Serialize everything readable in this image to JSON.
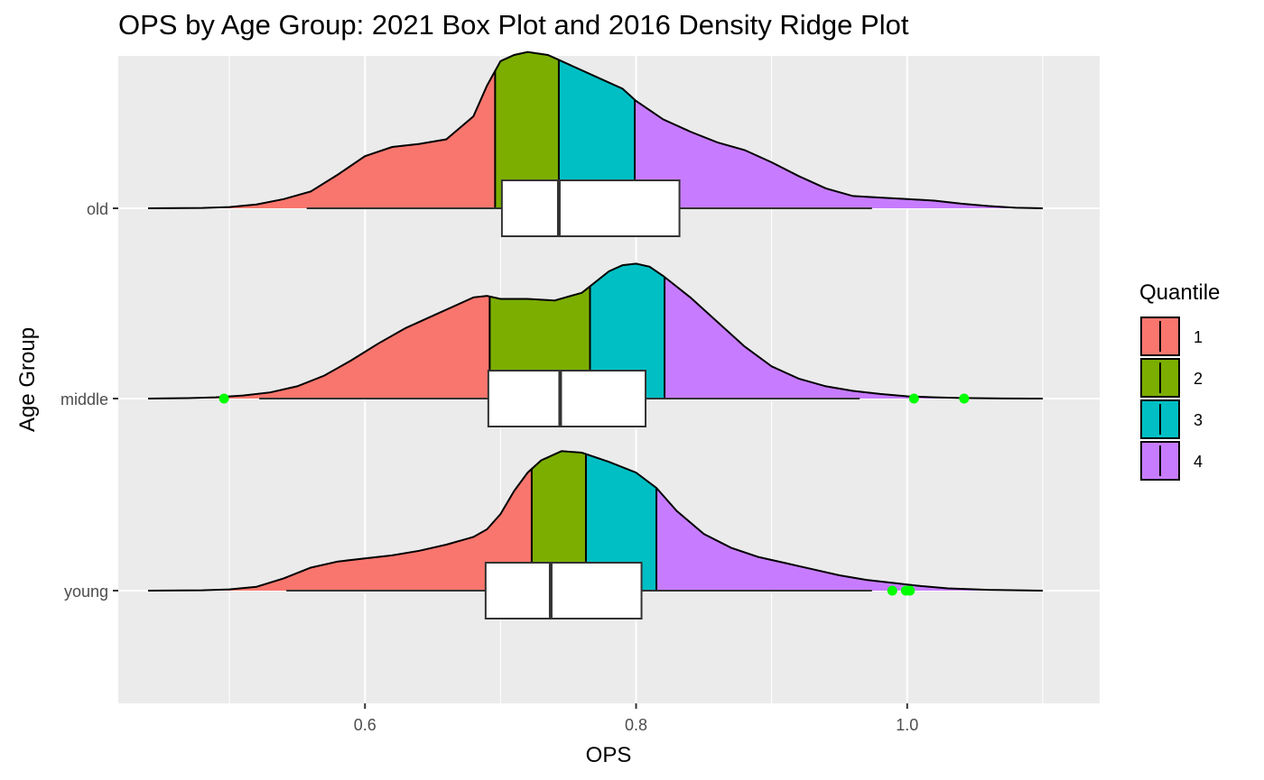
{
  "chart_data": {
    "type": "density-ridge with box plot",
    "title": "OPS by Age Group: 2021 Box Plot and 2016 Density Ridge Plot",
    "xlabel": "OPS",
    "ylabel": "Age Group",
    "xlim": [
      0.418,
      1.142
    ],
    "x_ticks": [
      "0.6",
      "0.8",
      "1.0"
    ],
    "x_tick_values": [
      0.6,
      0.8,
      1.0
    ],
    "categories": [
      "old",
      "middle",
      "young"
    ],
    "grid": true,
    "legend": {
      "title": "Quantile",
      "position": "right",
      "items": [
        {
          "label": "1",
          "color": "#F8766D"
        },
        {
          "label": "2",
          "color": "#7CAE00"
        },
        {
          "label": "3",
          "color": "#00BFC4"
        },
        {
          "label": "4",
          "color": "#C77CFF"
        }
      ]
    },
    "outlier_color": "#00FF00",
    "ridges": [
      {
        "group": "old",
        "range": [
          0.44,
          1.1
        ],
        "quantile_cuts": [
          0.696,
          0.743,
          0.799
        ],
        "density": [
          [
            0.44,
            0
          ],
          [
            0.48,
            0.002
          ],
          [
            0.5,
            0.008
          ],
          [
            0.52,
            0.025
          ],
          [
            0.54,
            0.06
          ],
          [
            0.56,
            0.11
          ],
          [
            0.58,
            0.22
          ],
          [
            0.6,
            0.34
          ],
          [
            0.62,
            0.4
          ],
          [
            0.64,
            0.42
          ],
          [
            0.66,
            0.45
          ],
          [
            0.68,
            0.6
          ],
          [
            0.69,
            0.8
          ],
          [
            0.7,
            0.96
          ],
          [
            0.71,
            1.0
          ],
          [
            0.72,
            1.02
          ],
          [
            0.735,
            1.0
          ],
          [
            0.75,
            0.94
          ],
          [
            0.77,
            0.86
          ],
          [
            0.79,
            0.78
          ],
          [
            0.8,
            0.7
          ],
          [
            0.82,
            0.58
          ],
          [
            0.84,
            0.5
          ],
          [
            0.86,
            0.43
          ],
          [
            0.88,
            0.38
          ],
          [
            0.9,
            0.3
          ],
          [
            0.92,
            0.21
          ],
          [
            0.94,
            0.13
          ],
          [
            0.96,
            0.08
          ],
          [
            0.98,
            0.07
          ],
          [
            1.0,
            0.06
          ],
          [
            1.02,
            0.05
          ],
          [
            1.04,
            0.03
          ],
          [
            1.06,
            0.015
          ],
          [
            1.08,
            0.004
          ],
          [
            1.1,
            0
          ]
        ]
      },
      {
        "group": "middle",
        "range": [
          0.44,
          1.1
        ],
        "quantile_cuts": [
          0.692,
          0.766,
          0.821
        ],
        "density": [
          [
            0.44,
            0
          ],
          [
            0.47,
            0.003
          ],
          [
            0.49,
            0.008
          ],
          [
            0.51,
            0.02
          ],
          [
            0.53,
            0.04
          ],
          [
            0.55,
            0.08
          ],
          [
            0.57,
            0.15
          ],
          [
            0.59,
            0.25
          ],
          [
            0.61,
            0.36
          ],
          [
            0.63,
            0.46
          ],
          [
            0.65,
            0.54
          ],
          [
            0.67,
            0.62
          ],
          [
            0.68,
            0.66
          ],
          [
            0.69,
            0.67
          ],
          [
            0.7,
            0.65
          ],
          [
            0.72,
            0.65
          ],
          [
            0.74,
            0.64
          ],
          [
            0.76,
            0.69
          ],
          [
            0.78,
            0.83
          ],
          [
            0.79,
            0.87
          ],
          [
            0.8,
            0.88
          ],
          [
            0.81,
            0.86
          ],
          [
            0.82,
            0.8
          ],
          [
            0.84,
            0.66
          ],
          [
            0.86,
            0.5
          ],
          [
            0.88,
            0.34
          ],
          [
            0.9,
            0.21
          ],
          [
            0.92,
            0.13
          ],
          [
            0.94,
            0.08
          ],
          [
            0.96,
            0.05
          ],
          [
            0.98,
            0.03
          ],
          [
            1.0,
            0.015
          ],
          [
            1.02,
            0.008
          ],
          [
            1.04,
            0.004
          ],
          [
            1.07,
            0.001
          ],
          [
            1.1,
            0
          ]
        ]
      },
      {
        "group": "young",
        "range": [
          0.44,
          1.1
        ],
        "quantile_cuts": [
          0.723,
          0.763,
          0.815
        ],
        "density": [
          [
            0.44,
            0
          ],
          [
            0.48,
            0.002
          ],
          [
            0.5,
            0.008
          ],
          [
            0.52,
            0.025
          ],
          [
            0.54,
            0.08
          ],
          [
            0.56,
            0.15
          ],
          [
            0.58,
            0.19
          ],
          [
            0.6,
            0.21
          ],
          [
            0.62,
            0.23
          ],
          [
            0.64,
            0.26
          ],
          [
            0.66,
            0.3
          ],
          [
            0.68,
            0.35
          ],
          [
            0.69,
            0.4
          ],
          [
            0.7,
            0.5
          ],
          [
            0.71,
            0.65
          ],
          [
            0.72,
            0.77
          ],
          [
            0.73,
            0.85
          ],
          [
            0.745,
            0.91
          ],
          [
            0.76,
            0.9
          ],
          [
            0.78,
            0.84
          ],
          [
            0.8,
            0.77
          ],
          [
            0.815,
            0.67
          ],
          [
            0.83,
            0.52
          ],
          [
            0.85,
            0.37
          ],
          [
            0.87,
            0.28
          ],
          [
            0.89,
            0.22
          ],
          [
            0.91,
            0.18
          ],
          [
            0.93,
            0.14
          ],
          [
            0.95,
            0.1
          ],
          [
            0.97,
            0.07
          ],
          [
            0.99,
            0.05
          ],
          [
            1.01,
            0.03
          ],
          [
            1.03,
            0.015
          ],
          [
            1.06,
            0.005
          ],
          [
            1.1,
            0
          ]
        ]
      }
    ],
    "boxplots": [
      {
        "group": "old",
        "whisker_low": 0.557,
        "q1": 0.701,
        "median": 0.743,
        "q3": 0.832,
        "whisker_high": 0.974,
        "outliers": []
      },
      {
        "group": "middle",
        "whisker_low": 0.522,
        "q1": 0.691,
        "median": 0.744,
        "q3": 0.807,
        "whisker_high": 0.965,
        "outliers": [
          0.496,
          1.005,
          1.042
        ]
      },
      {
        "group": "young",
        "whisker_low": 0.542,
        "q1": 0.689,
        "median": 0.737,
        "q3": 0.804,
        "whisker_high": 0.974,
        "outliers": [
          0.989,
          0.999,
          1.002
        ]
      }
    ]
  }
}
